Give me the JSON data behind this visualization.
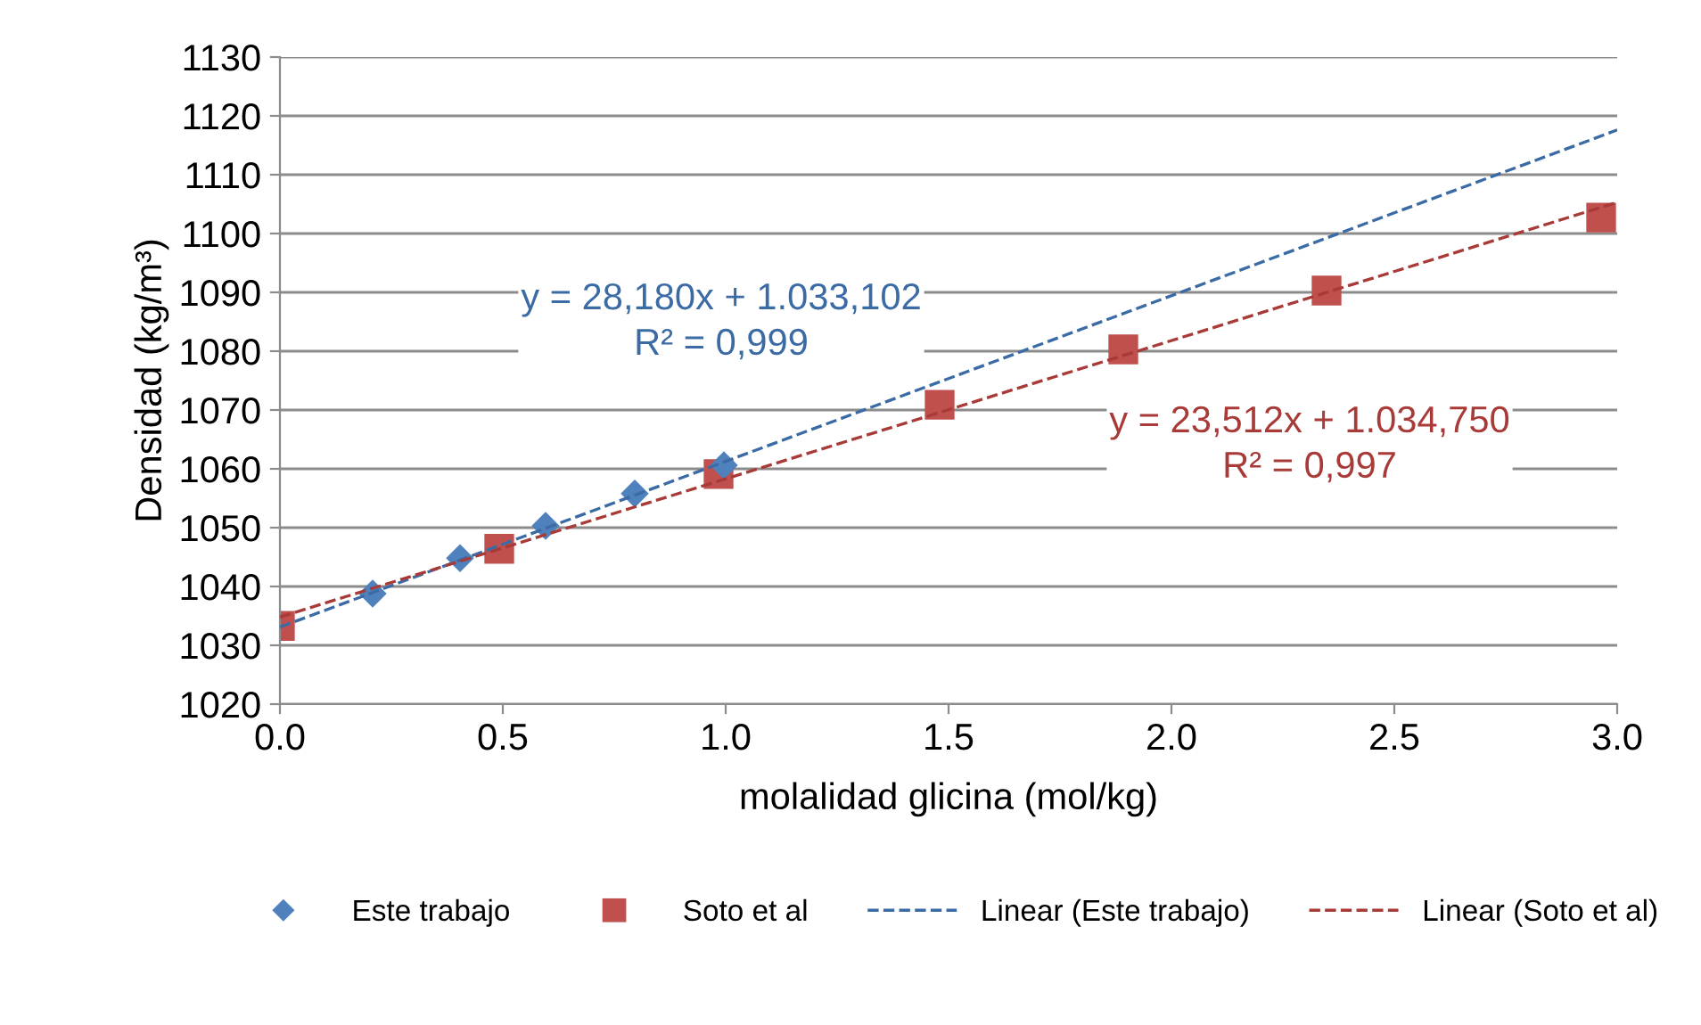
{
  "chart_data": {
    "type": "scatter",
    "xlabel": "molalidad glicina (mol/kg)",
    "ylabel": "Densidad (kg/m³)",
    "xlim": [
      0,
      3.0
    ],
    "xticks": [
      {
        "value": 0,
        "label": "0.0"
      },
      {
        "value": 0.5,
        "label": "0.5"
      },
      {
        "value": 1.0,
        "label": "1.0"
      },
      {
        "value": 1.5,
        "label": "1.5"
      },
      {
        "value": 2.0,
        "label": "2.0"
      },
      {
        "value": 2.5,
        "label": "2.5"
      },
      {
        "value": 3.0,
        "label": "3.0"
      }
    ],
    "ylim": [
      1020,
      1130
    ],
    "yticks": [
      1020,
      1030,
      1040,
      1050,
      1060,
      1070,
      1080,
      1090,
      1100,
      1110,
      1120,
      1130
    ],
    "grid": "y",
    "legend": "bottom",
    "series": [
      {
        "name": "Este trabajo",
        "marker": "diamond",
        "color": "#4f81bd",
        "x": [
          0.208,
          0.404,
          0.596,
          0.796,
          0.996
        ],
        "values": [
          1038.8,
          1044.8,
          1050.3,
          1055.8,
          1060.6
        ]
      },
      {
        "name": "Soto et al",
        "marker": "square",
        "color": "#c0504d",
        "x": [
          0,
          0.492,
          0.984,
          1.48,
          1.892,
          2.348,
          2.964
        ],
        "values": [
          1033.3,
          1046.4,
          1059.1,
          1070.9,
          1080.3,
          1090.3,
          1102.7
        ]
      },
      {
        "name": "Linear (Este trabajo)",
        "type": "line",
        "line_style": "dashed",
        "color": "#3b6ba5",
        "x": [
          0,
          3.0
        ],
        "values": [
          1033.1,
          1117.6
        ]
      },
      {
        "name": "Linear (Soto et al)",
        "type": "line",
        "line_style": "dashed",
        "color": "#a83a37",
        "x": [
          0,
          3.0
        ],
        "values": [
          1034.8,
          1105.3
        ]
      }
    ],
    "annotations": [
      "y = 28,180x + 1.033,102\nR² = 0,999",
      "y = 23,512x + 1.034,750\nR² = 0,997"
    ]
  }
}
